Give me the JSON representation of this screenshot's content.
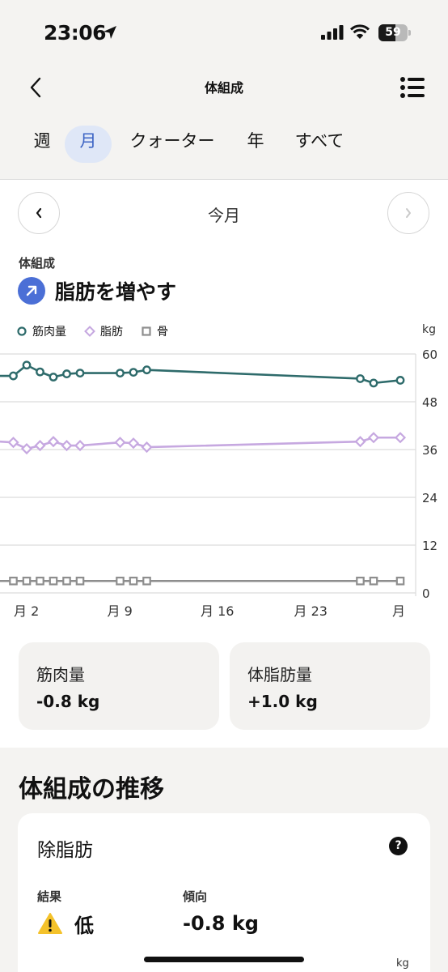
{
  "status_bar": {
    "time": "23:06",
    "battery": "59",
    "battery_level": 0.59
  },
  "header": {
    "title": "体組成"
  },
  "tabs": [
    {
      "label": "週",
      "active": false
    },
    {
      "label": "月",
      "active": true
    },
    {
      "label": "クォーター",
      "active": false
    },
    {
      "label": "年",
      "active": false
    },
    {
      "label": "すべて",
      "active": false
    }
  ],
  "period": {
    "label": "今月"
  },
  "summary": {
    "section_label": "体組成",
    "goal_text": "脂肪を増やす",
    "accent_color": "#4b6fd6"
  },
  "chart_data": {
    "type": "line",
    "ylabel": "kg",
    "ylim": [
      0,
      60
    ],
    "y_ticks": [
      "60",
      "48",
      "36",
      "24",
      "12",
      "0"
    ],
    "x_ticks": [
      "月 2",
      "月 9",
      "月 16",
      "月 23",
      "月"
    ],
    "grid": true,
    "legend_position": "top-left",
    "series": [
      {
        "name": "筋肉量",
        "color": "#2e6b6b",
        "marker": "circle",
        "points": [
          [
            -1,
            54.5
          ],
          [
            0,
            54.5
          ],
          [
            1,
            57.2
          ],
          [
            2,
            55.5
          ],
          [
            3,
            54.2
          ],
          [
            4,
            55.0
          ],
          [
            5,
            55.2
          ],
          [
            8,
            55.2
          ],
          [
            9,
            55.4
          ],
          [
            10,
            56.0
          ],
          [
            26,
            53.8
          ],
          [
            27,
            52.7
          ],
          [
            29,
            53.4
          ]
        ]
      },
      {
        "name": "脂肪",
        "color": "#c6a8e0",
        "marker": "diamond",
        "points": [
          [
            -1,
            38.0
          ],
          [
            0,
            37.8
          ],
          [
            1,
            36.2
          ],
          [
            2,
            37.0
          ],
          [
            3,
            38.0
          ],
          [
            4,
            37.0
          ],
          [
            5,
            37.0
          ],
          [
            8,
            37.8
          ],
          [
            9,
            37.6
          ],
          [
            10,
            36.6
          ],
          [
            26,
            38.0
          ],
          [
            27,
            39.0
          ],
          [
            29,
            39.0
          ]
        ]
      },
      {
        "name": "骨",
        "color": "#8e8e8e",
        "marker": "square",
        "points": [
          [
            -1,
            3.0
          ],
          [
            0,
            3.0
          ],
          [
            1,
            3.0
          ],
          [
            2,
            3.0
          ],
          [
            3,
            3.0
          ],
          [
            4,
            3.0
          ],
          [
            5,
            3.0
          ],
          [
            8,
            3.0
          ],
          [
            9,
            3.0
          ],
          [
            10,
            3.0
          ],
          [
            26,
            3.0
          ],
          [
            27,
            3.0
          ],
          [
            29,
            3.0
          ]
        ]
      }
    ]
  },
  "stats": [
    {
      "label": "筋肉量",
      "value": "-0.8 kg"
    },
    {
      "label": "体脂肪量",
      "value": "+1.0 kg"
    }
  ],
  "trend": {
    "title": "体組成の推移",
    "card_title": "除脂肪",
    "help_label": "?",
    "result_label": "結果",
    "result_value": "低",
    "trend_label": "傾向",
    "trend_value": "-0.8 kg",
    "unit": "kg"
  }
}
